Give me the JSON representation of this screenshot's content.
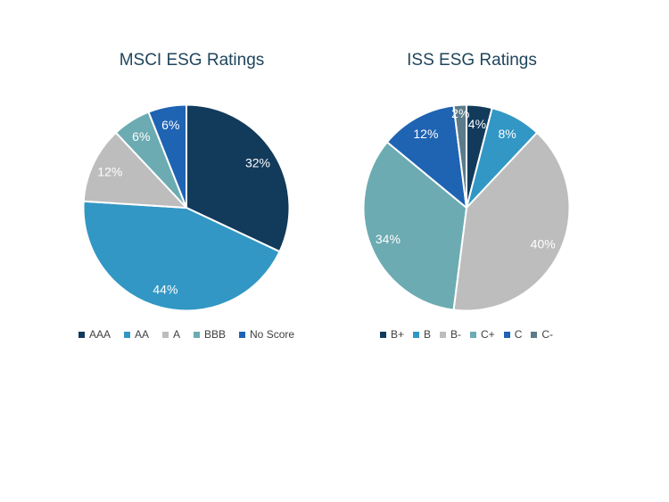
{
  "page": {
    "background": "#FFFFFF"
  },
  "styles": {
    "title_color": "#1F455C",
    "slice_label_color": "#FFFFFF",
    "legend_text_color": "#404040",
    "slice_border_color": "#FFFFFF"
  },
  "chart_data": [
    {
      "type": "pie",
      "title": "MSCI ESG Ratings",
      "categories": [
        "AAA",
        "AA",
        "A",
        "BBB",
        "No Score"
      ],
      "values": [
        32,
        44,
        12,
        6,
        6
      ],
      "labels": [
        "32%",
        "44%",
        "12%",
        "6%",
        "6%"
      ],
      "colors": [
        "#123A5B",
        "#3297C4",
        "#BDBDBD",
        "#6CABB2",
        "#1F63B3"
      ],
      "legend_position": "bottom",
      "start_angle_deg": 0,
      "direction": "clockwise"
    },
    {
      "type": "pie",
      "title": "ISS ESG Ratings",
      "categories": [
        "B+",
        "B",
        "B-",
        "C+",
        "C",
        "C-"
      ],
      "values": [
        4,
        8,
        40,
        34,
        12,
        2
      ],
      "labels": [
        "4%",
        "8%",
        "40%",
        "34%",
        "12%",
        "2%"
      ],
      "colors": [
        "#123A5B",
        "#3297C4",
        "#BDBDBD",
        "#6CABB2",
        "#1F63B3",
        "#5C7B8A"
      ],
      "legend_position": "bottom",
      "start_angle_deg": 0,
      "direction": "clockwise"
    }
  ]
}
